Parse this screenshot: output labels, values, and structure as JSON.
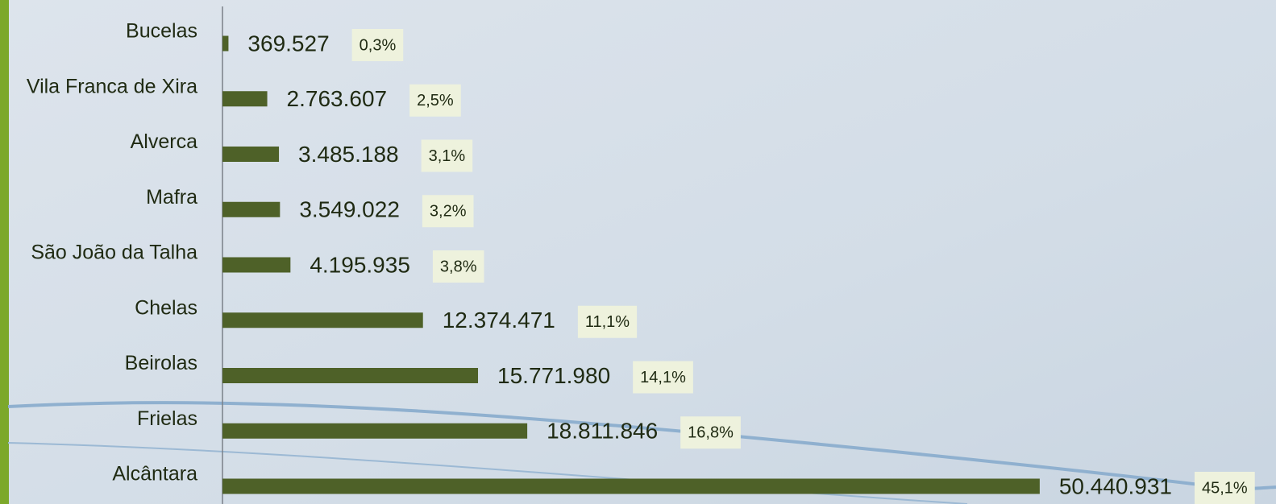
{
  "chart_data": {
    "type": "bar",
    "orientation": "horizontal",
    "categories": [
      "Bucelas",
      "Vila Franca de Xira",
      "Alverca",
      "Mafra",
      "São João da Talha",
      "Chelas",
      "Beirolas",
      "Frielas",
      "Alcântara"
    ],
    "values": [
      369527,
      2763607,
      3485188,
      3549022,
      4195935,
      12374471,
      15771980,
      18811846,
      50440931
    ],
    "value_labels": [
      "369.527",
      "2.763.607",
      "3.485.188",
      "3.549.022",
      "4.195.935",
      "12.374.471",
      "15.771.980",
      "18.811.846",
      "50.440.931"
    ],
    "shares": [
      0.3,
      2.5,
      3.1,
      3.2,
      3.8,
      11.1,
      14.1,
      16.8,
      45.1
    ],
    "share_labels": [
      "0,3%",
      "2,5%",
      "3,1%",
      "3,2%",
      "3,8%",
      "11,1%",
      "14,1%",
      "16,8%",
      "45,1%"
    ],
    "color": "#4e6128",
    "xlim": [
      0,
      50000000
    ]
  }
}
